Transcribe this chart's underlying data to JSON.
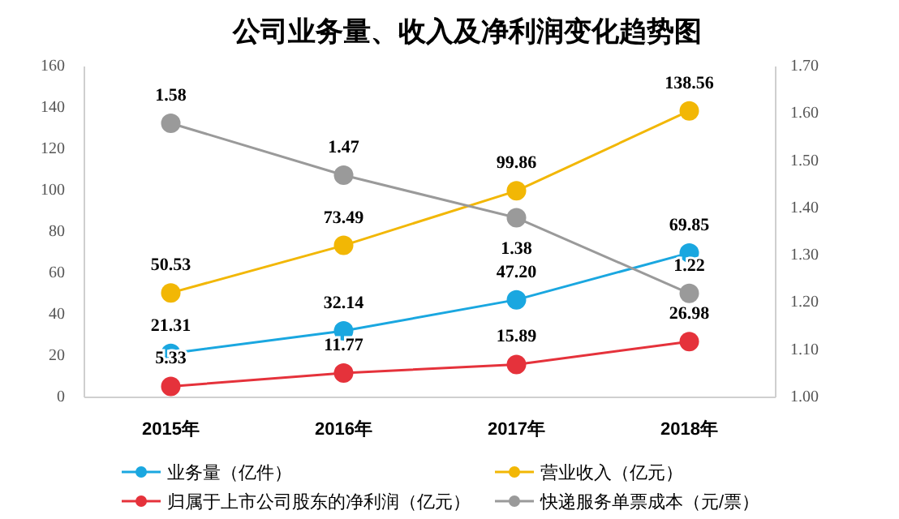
{
  "chart_data": {
    "type": "line",
    "title": "公司业务量、收入及净利润变化趋势图",
    "categories": [
      "2015年",
      "2016年",
      "2017年",
      "2018年"
    ],
    "series": [
      {
        "name": "业务量（亿件）",
        "color": "#1aa7e0",
        "values": [
          21.31,
          32.14,
          47.2,
          69.85
        ],
        "value_labels": [
          "21.31",
          "32.14",
          "47.20",
          "69.85"
        ]
      },
      {
        "name": "营业收入（亿元）",
        "color": "#f2b705",
        "values": [
          50.53,
          73.49,
          99.86,
          138.56
        ],
        "value_labels": [
          "50.53",
          "73.49",
          "99.86",
          "138.56"
        ]
      },
      {
        "name": "归属于上市公司股东的净利润（亿元）",
        "color": "#e5323b",
        "values": [
          5.33,
          11.77,
          15.89,
          26.98
        ],
        "value_labels": [
          "5.33",
          "11.77",
          "15.89",
          "26.98"
        ]
      },
      {
        "name": "快递服务单票成本（元/票）",
        "color": "#9a9a9a",
        "axis": "y2",
        "values": [
          1.58,
          1.47,
          1.38,
          1.22
        ],
        "value_labels": [
          "1.58",
          "1.47",
          "1.38",
          "1.22"
        ]
      }
    ],
    "ylim": [
      0,
      160
    ],
    "yticks": [
      0,
      20,
      40,
      60,
      80,
      100,
      120,
      140,
      160
    ],
    "y2lim": [
      1,
      1.7
    ],
    "y2ticks": [
      {
        "value": 1,
        "label": "1.00"
      },
      {
        "value": 1.1,
        "label": "1.10"
      },
      {
        "value": 1.2,
        "label": "1.20"
      },
      {
        "value": 1.3,
        "label": "1.30"
      },
      {
        "value": 1.4,
        "label": "1.40"
      },
      {
        "value": 1.5,
        "label": "1.50"
      },
      {
        "value": 1.6,
        "label": "1.60"
      },
      {
        "value": 1.7,
        "label": "1.70"
      }
    ],
    "legend": "bottom",
    "marker": "circle",
    "grid": false
  }
}
